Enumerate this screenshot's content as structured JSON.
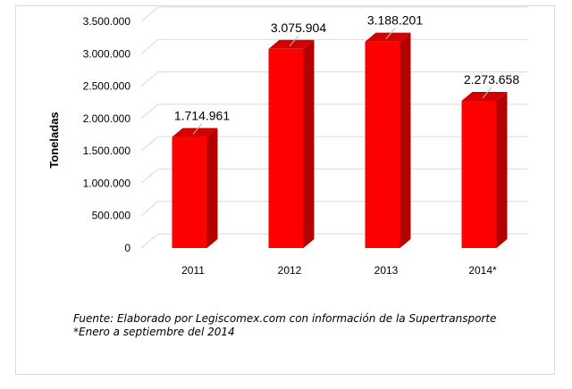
{
  "chart_data": {
    "type": "bar",
    "title": "",
    "xlabel": "",
    "ylabel": "Toneladas",
    "categories": [
      "2011",
      "2012",
      "2013",
      "2014*"
    ],
    "values": [
      1714961,
      3075904,
      3188201,
      2273658
    ],
    "value_labels": [
      "1.714.961",
      "3.075.904",
      "3.188.201",
      "2.273.658"
    ],
    "yticks": [
      0,
      500000,
      1000000,
      1500000,
      2000000,
      2500000,
      3000000,
      3500000
    ],
    "ytick_labels": [
      "0",
      "500.000",
      "1.000.000",
      "1.500.000",
      "2.000.000",
      "2.500.000",
      "3.000.000",
      "3.500.000"
    ],
    "ylim": [
      0,
      3500000
    ],
    "grid": true,
    "legend": "none",
    "bar_color": "#ff0000",
    "bar_side_color": "#b30000",
    "bar_top_color": "#d40000"
  },
  "footnote": {
    "source": "Fuente: Elaborado por Legiscomex.com con información de la Supertransporte",
    "note": "*Enero a septiembre del 2014"
  }
}
